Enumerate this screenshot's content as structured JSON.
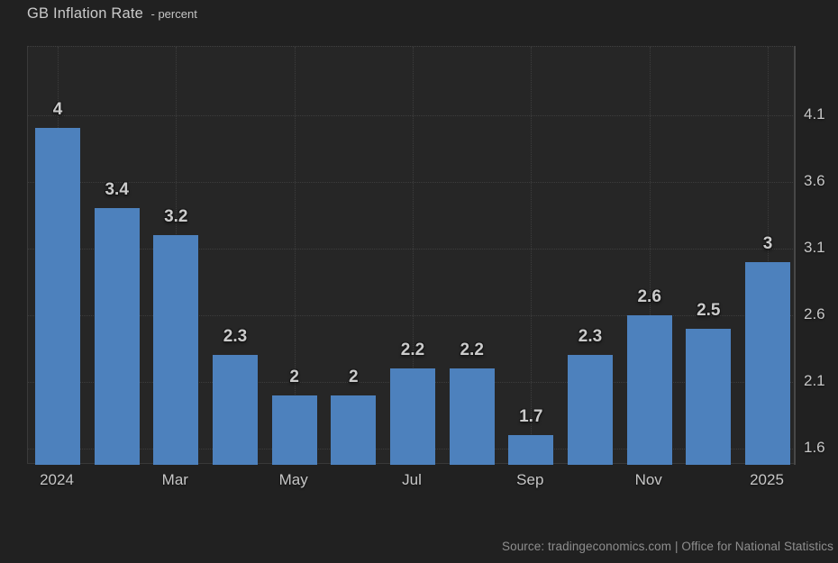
{
  "title": {
    "main": "GB Inflation Rate",
    "sub": "- percent"
  },
  "source": "Source: tradingeconomics.com | Office for National Statistics",
  "colors": {
    "page_background": "#212121",
    "plot_background": "#262626",
    "bar": "#4d81bd",
    "grid": "#3d3d3d",
    "axis_line": "#474747",
    "text": "#c7c7c7",
    "muted_text": "#8e8e8e"
  },
  "chart_data": {
    "type": "bar",
    "title": "GB Inflation Rate",
    "ylabel": "percent",
    "values": [
      4,
      3.4,
      3.2,
      2.3,
      2,
      2,
      2.2,
      2.2,
      1.7,
      2.3,
      2.6,
      2.5,
      3
    ],
    "bar_labels": [
      "4",
      "3.4",
      "3.2",
      "2.3",
      "2",
      "2",
      "2.2",
      "2.2",
      "1.7",
      "2.3",
      "2.6",
      "2.5",
      "3"
    ],
    "x_tick_labels": [
      {
        "index": 0,
        "label": "2024"
      },
      {
        "index": 2,
        "label": "Mar"
      },
      {
        "index": 4,
        "label": "May"
      },
      {
        "index": 6,
        "label": "Jul"
      },
      {
        "index": 8,
        "label": "Sep"
      },
      {
        "index": 10,
        "label": "Nov"
      },
      {
        "index": 12,
        "label": "2025"
      }
    ],
    "y_ticks": [
      1.6,
      2.1,
      2.6,
      3.1,
      3.6,
      4.1
    ],
    "ylim": [
      1.48,
      4.61
    ],
    "grid": true,
    "legend": false,
    "y_axis_position": "right"
  }
}
